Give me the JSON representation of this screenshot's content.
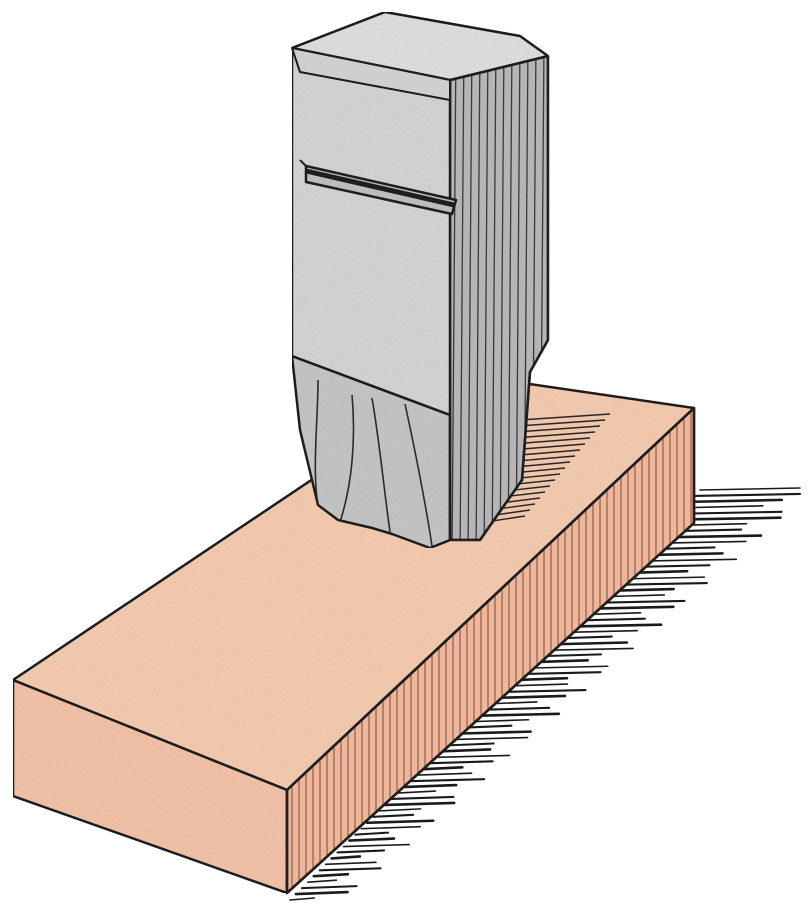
{
  "colors": {
    "background": "#ffffff",
    "block_top": "#f8cfb3",
    "block_front": "#f5c7ab",
    "block_side": "#eeb799",
    "block_side_lines": "#7a4f3f",
    "stone_light": "#d9d9d9",
    "stone_mid": "#c8c8c8",
    "stone_dark": "#b6b6b6",
    "ink": "#1e1e1e",
    "shadow": "#1a1a1a"
  }
}
